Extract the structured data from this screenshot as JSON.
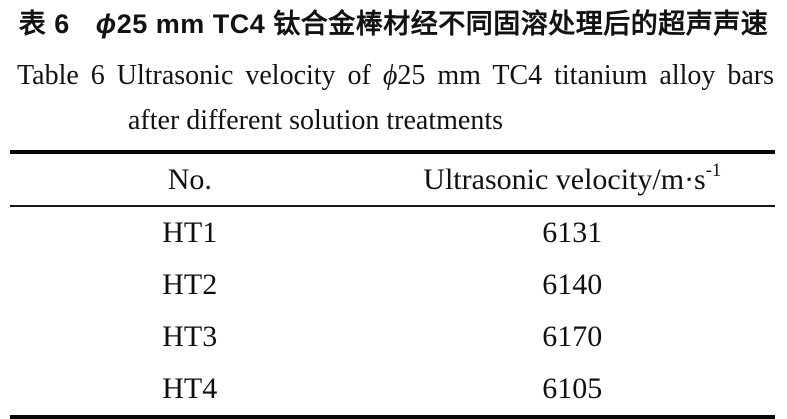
{
  "page": {
    "background": "#ffffff",
    "text_color": "#121212",
    "rule_color": "#060606"
  },
  "caption": {
    "zh_label": "表 6",
    "zh_phi": "ϕ",
    "zh_text": "25 mm TC4 钛合金棒材经不同固溶处理后的超声声速",
    "en_label": "Table 6",
    "en_text_a": "Ultrasonic velocity of",
    "en_phi": "ϕ",
    "en_text_b": "25 mm TC4 titanium alloy bars",
    "en_line2": "after different solution treatments"
  },
  "table": {
    "header": {
      "no": "No.",
      "velocity_base": "Ultrasonic velocity/m·s",
      "velocity_sup": "-1"
    },
    "rows": [
      {
        "no": "HT1",
        "velocity": "6131"
      },
      {
        "no": "HT2",
        "velocity": "6140"
      },
      {
        "no": "HT3",
        "velocity": "6170"
      },
      {
        "no": "HT4",
        "velocity": "6105"
      }
    ]
  },
  "chart_data": {
    "type": "table",
    "title_zh": "表 6 ϕ25 mm TC4 钛合金棒材经不同固溶处理后的超声声速",
    "title_en": "Table 6 Ultrasonic velocity of ϕ25 mm TC4 titanium alloy bars after different solution treatments",
    "columns": [
      "No.",
      "Ultrasonic velocity/m·s⁻¹"
    ],
    "rows": [
      [
        "HT1",
        6131
      ],
      [
        "HT2",
        6140
      ],
      [
        "HT3",
        6170
      ],
      [
        "HT4",
        6105
      ]
    ]
  }
}
